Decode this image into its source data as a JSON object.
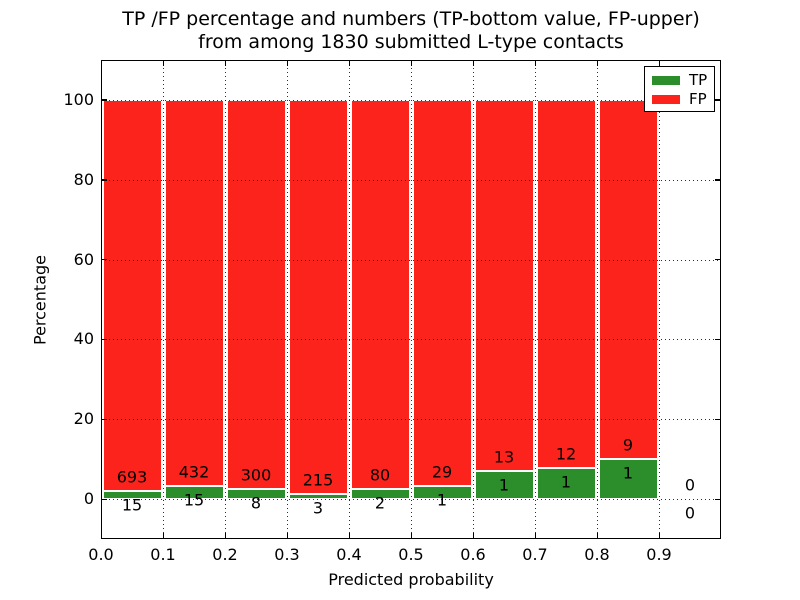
{
  "figure": {
    "title_line1": "TP /FP percentage and numbers (TP-bottom value, FP-upper)",
    "title_line2": "from among 1830 submitted L-type contacts",
    "xlabel": "Predicted probability",
    "ylabel": "Percentage"
  },
  "legend": {
    "position": "upper right",
    "items": [
      {
        "label": "TP",
        "color": "#2b8e2b"
      },
      {
        "label": "FP",
        "color": "#fb231b"
      }
    ]
  },
  "chart_data": {
    "type": "bar",
    "stacked": true,
    "title": "TP /FP percentage and numbers (TP-bottom value, FP-upper) from among 1830 submitted L-type contacts",
    "xlabel": "Predicted probability",
    "ylabel": "Percentage",
    "total_submitted_contacts": 1830,
    "xlim": [
      0,
      1.0
    ],
    "ylim": [
      -10,
      110
    ],
    "grid": "dotted",
    "legend_position": "upper right",
    "bin_starts": [
      0.0,
      0.1,
      0.2,
      0.3,
      0.4,
      0.5,
      0.6,
      0.7,
      0.8,
      0.9
    ],
    "bin_width": 0.1,
    "x_tick_labels": [
      "0.0",
      "0.1",
      "0.2",
      "0.3",
      "0.4",
      "0.5",
      "0.6",
      "0.7",
      "0.8",
      "0.9"
    ],
    "x_tick_values": [
      0.0,
      0.1,
      0.2,
      0.3,
      0.4,
      0.5,
      0.6,
      0.7,
      0.8,
      0.9
    ],
    "y_tick_labels": [
      "0",
      "20",
      "40",
      "60",
      "80",
      "100"
    ],
    "y_tick_values": [
      0,
      20,
      40,
      60,
      80,
      100
    ],
    "series": [
      {
        "name": "TP",
        "color": "#2b8e2b",
        "counts": [
          15,
          15,
          8,
          3,
          2,
          1,
          1,
          1,
          1,
          0
        ]
      },
      {
        "name": "FP",
        "color": "#fb231b",
        "counts": [
          693,
          432,
          300,
          215,
          80,
          29,
          13,
          12,
          9,
          0
        ]
      }
    ],
    "tp_percent": [
      2.12,
      3.36,
      2.6,
      1.38,
      2.44,
      3.33,
      7.14,
      7.69,
      10.0,
      0.0
    ],
    "fp_percent": [
      97.88,
      96.64,
      97.4,
      98.62,
      97.56,
      96.67,
      92.86,
      92.31,
      90.0,
      0.0
    ],
    "label_offset_percent": 3.5
  }
}
